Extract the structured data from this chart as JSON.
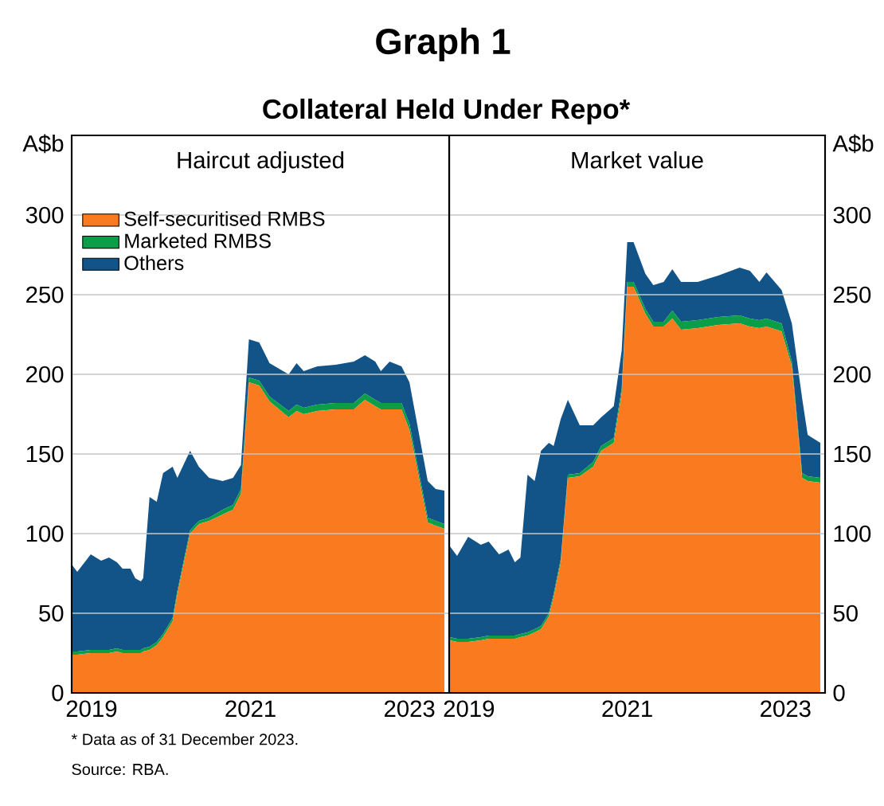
{
  "chart_data": [
    {
      "type": "area",
      "title": "Graph 1",
      "subtitle": "Collateral Held Under Repo*",
      "ylabel": "A$b",
      "stacked": true,
      "grid": "y",
      "legend": "top left",
      "annotations": [
        "Haircut adjusted",
        "* Data as of 31 December 2023.",
        "Source: RBA."
      ],
      "xlim": [
        2019.25,
        2024
      ],
      "ylim": [
        0,
        350
      ],
      "xticks": [
        {
          "value": 2019.5,
          "label": "2019"
        },
        {
          "value": 2020,
          "label": null
        },
        {
          "value": 2021,
          "label": null
        },
        {
          "value": 2021.5,
          "label": "2021"
        },
        {
          "value": 2022,
          "label": null
        },
        {
          "value": 2023,
          "label": null
        },
        {
          "value": 2023.5,
          "label": "2023"
        }
      ],
      "yticks": [
        0,
        50,
        100,
        150,
        200,
        250,
        300
      ],
      "x": [
        2019.26,
        2019.32,
        2019.49,
        2019.62,
        2019.72,
        2019.82,
        2019.89,
        2019.99,
        2020.05,
        2020.12,
        2020.15,
        2020.23,
        2020.32,
        2020.4,
        2020.52,
        2020.58,
        2020.74,
        2020.85,
        2020.98,
        2021.15,
        2021.28,
        2021.38,
        2021.48,
        2021.61,
        2021.74,
        2021.98,
        2022.08,
        2022.17,
        2022.34,
        2022.57,
        2022.8,
        2022.94,
        2023.07,
        2023.14,
        2023.25,
        2023.4,
        2023.5,
        2023.73,
        2023.83,
        2023.94
      ],
      "series": [
        {
          "name": "Self-securitised RMBS",
          "color": "#f97a1f",
          "values": [
            24,
            24,
            25,
            25,
            25,
            26,
            25,
            25,
            25,
            25,
            26,
            27,
            30,
            35,
            45,
            62,
            100,
            106,
            108,
            112,
            115,
            125,
            195,
            193,
            183,
            173,
            177,
            175,
            177,
            178,
            178,
            184,
            180,
            178,
            178,
            178,
            165,
            107,
            105,
            103
          ]
        },
        {
          "name": "Marketed RMBS",
          "color": "#0a9e48",
          "values": [
            2,
            2,
            2,
            2,
            2,
            2,
            2,
            2,
            2,
            2,
            2,
            2,
            2,
            2,
            2,
            2,
            2,
            2,
            2,
            3,
            3,
            3,
            3,
            3,
            3,
            4,
            4,
            4,
            4,
            4,
            4,
            4,
            4,
            4,
            4,
            4,
            4,
            3,
            3,
            3
          ]
        },
        {
          "name": "Others",
          "color": "#135488",
          "values": [
            54,
            50,
            60,
            56,
            58,
            54,
            51,
            51,
            45,
            43,
            44,
            94,
            88,
            101,
            95,
            71,
            50,
            34,
            25,
            18,
            17,
            15,
            24,
            24,
            21,
            23,
            26,
            23,
            24,
            24,
            26,
            24,
            24,
            20,
            26,
            23,
            26,
            23,
            20,
            21
          ]
        }
      ]
    },
    {
      "type": "area",
      "ylabel": "A$b",
      "stacked": true,
      "grid": "y",
      "annotations": [
        "Market value"
      ],
      "xlim": [
        2019.25,
        2024
      ],
      "ylim": [
        0,
        350
      ],
      "xticks": [
        {
          "value": 2019.5,
          "label": "2019"
        },
        {
          "value": 2020,
          "label": null
        },
        {
          "value": 2021,
          "label": null
        },
        {
          "value": 2021.5,
          "label": "2021"
        },
        {
          "value": 2022,
          "label": null
        },
        {
          "value": 2023,
          "label": null
        },
        {
          "value": 2023.5,
          "label": "2023"
        }
      ],
      "yticks": [
        0,
        50,
        100,
        150,
        200,
        250,
        300
      ],
      "x": [
        2019.26,
        2019.35,
        2019.49,
        2019.65,
        2019.75,
        2019.88,
        2020.0,
        2020.08,
        2020.15,
        2020.24,
        2020.33,
        2020.41,
        2020.51,
        2020.57,
        2020.66,
        2020.75,
        2020.9,
        2021.07,
        2021.17,
        2021.33,
        2021.43,
        2021.5,
        2021.58,
        2021.73,
        2021.83,
        2021.96,
        2022.07,
        2022.18,
        2022.39,
        2022.65,
        2022.92,
        2023.05,
        2023.17,
        2023.26,
        2023.45,
        2023.58,
        2023.71,
        2023.78,
        2023.94
      ],
      "series": [
        {
          "color": "#f97a1f",
          "values": [
            33,
            32,
            32,
            33,
            34,
            34,
            34,
            34,
            35,
            36,
            38,
            40,
            48,
            60,
            82,
            135,
            136,
            142,
            152,
            157,
            188,
            255,
            255,
            238,
            230,
            230,
            235,
            228,
            229,
            231,
            232,
            230,
            229,
            230,
            227,
            205,
            135,
            133,
            132
          ]
        },
        {
          "color": "#0a9e48",
          "values": [
            2,
            2,
            2,
            2,
            2,
            2,
            2,
            2,
            2,
            2,
            2,
            2,
            2,
            2,
            2,
            2,
            2,
            3,
            3,
            3,
            3,
            3,
            3,
            3,
            3,
            3,
            5,
            5,
            5,
            5,
            5,
            5,
            5,
            5,
            5,
            3,
            3,
            3,
            3
          ]
        },
        {
          "color": "#135488",
          "values": [
            57,
            52,
            64,
            58,
            59,
            51,
            54,
            46,
            48,
            99,
            93,
            110,
            107,
            93,
            88,
            47,
            30,
            23,
            18,
            20,
            24,
            25,
            25,
            22,
            23,
            25,
            26,
            25,
            24,
            26,
            30,
            30,
            24,
            29,
            21,
            24,
            47,
            26,
            22
          ]
        }
      ]
    }
  ]
}
